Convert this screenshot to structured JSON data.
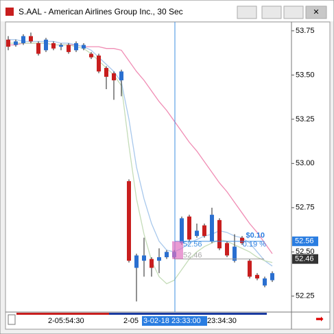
{
  "window_title": "S.AAL - American Airlines Group Inc., 30 Sec",
  "chart_data": {
    "type": "candlestick",
    "open": [
      53.7,
      53.67,
      53.68,
      53.72,
      53.68,
      53.64,
      53.68,
      53.66,
      53.67,
      53.64,
      53.65,
      53.62,
      53.61,
      53.54,
      53.51,
      53.47,
      52.9,
      52.41,
      52.45,
      52.46,
      52.45,
      52.47,
      52.47,
      52.55,
      52.7,
      52.59,
      52.65,
      52.56,
      52.68,
      52.55,
      52.45,
      52.58,
      52.45,
      52.37,
      52.31,
      52.34
    ],
    "high": [
      53.72,
      53.7,
      53.73,
      53.74,
      53.69,
      53.71,
      53.69,
      53.68,
      53.68,
      53.69,
      53.68,
      53.63,
      53.62,
      53.55,
      53.52,
      53.53,
      52.91,
      52.49,
      52.58,
      52.47,
      52.52,
      52.51,
      52.51,
      52.7,
      52.71,
      52.66,
      52.66,
      52.75,
      52.69,
      52.56,
      52.6,
      52.59,
      52.46,
      52.38,
      52.36,
      52.39
    ],
    "low": [
      53.64,
      53.66,
      53.67,
      53.68,
      53.61,
      53.63,
      53.64,
      53.64,
      53.62,
      53.63,
      53.64,
      53.59,
      53.51,
      53.42,
      53.36,
      53.38,
      52.44,
      52.22,
      52.36,
      52.36,
      52.38,
      52.46,
      52.46,
      52.54,
      52.56,
      52.58,
      52.58,
      52.55,
      52.51,
      52.47,
      52.44,
      52.54,
      52.35,
      52.34,
      52.3,
      52.33
    ],
    "close": [
      53.66,
      53.69,
      53.72,
      53.69,
      53.62,
      53.7,
      53.65,
      53.67,
      53.63,
      53.68,
      53.67,
      53.6,
      53.52,
      53.49,
      53.47,
      53.52,
      52.45,
      52.48,
      52.48,
      52.41,
      52.47,
      52.5,
      52.5,
      52.69,
      52.57,
      52.62,
      52.59,
      52.71,
      52.52,
      52.48,
      52.53,
      52.55,
      52.36,
      52.35,
      52.35,
      52.38
    ],
    "up_color": "#2a6fd0",
    "down_color": "#c81e1e",
    "series": [
      {
        "color": "#f08cb4",
        "values": [
          53.67,
          53.67,
          53.68,
          53.68,
          53.68,
          53.68,
          53.67,
          53.67,
          53.67,
          53.67,
          53.66,
          53.66,
          53.66,
          53.65,
          53.65,
          53.64,
          53.58,
          53.52,
          53.47,
          53.41,
          53.35,
          53.3,
          53.24,
          53.18,
          53.12,
          53.07,
          53.01,
          52.95,
          52.89,
          52.84,
          52.78,
          52.72,
          52.66,
          52.61,
          52.55,
          52.49
        ]
      },
      {
        "color": "#a8c8ec",
        "values": [
          53.7,
          53.7,
          53.69,
          53.69,
          53.69,
          53.69,
          53.69,
          53.68,
          53.68,
          53.67,
          53.66,
          53.64,
          53.6,
          53.56,
          53.52,
          53.46,
          53.25,
          52.98,
          52.8,
          52.66,
          52.56,
          52.51,
          52.5,
          52.52,
          52.55,
          52.57,
          52.59,
          52.6,
          52.62,
          52.61,
          52.59,
          52.58,
          52.55,
          52.5,
          52.45,
          52.42
        ]
      },
      {
        "color": "#c4dcb8",
        "values": [
          53.68,
          53.68,
          53.68,
          53.68,
          53.68,
          53.68,
          53.67,
          53.67,
          53.67,
          53.66,
          53.65,
          53.62,
          53.58,
          53.54,
          53.5,
          53.44,
          53.1,
          52.8,
          52.6,
          52.45,
          52.36,
          52.32,
          52.34,
          52.4,
          52.46,
          52.5,
          52.53,
          52.55,
          52.57,
          52.56,
          52.54,
          52.52,
          52.5,
          52.47,
          52.45,
          52.44
        ]
      }
    ],
    "ylim": [
      52.16,
      53.8
    ],
    "yticks": [
      53.75,
      {
        "value": 53.5,
        "label": "53.50"
      },
      53.25,
      {
        "value": 53,
        "label": "53.00"
      },
      52.75,
      {
        "value": 52.5,
        "label": "52.50"
      },
      52.25
    ],
    "xtick_labels": [
      "2-05:54:30",
      "2-05",
      "23:34:30"
    ],
    "cursor_time": "3-02-18 23:33:00",
    "price_tags": [
      {
        "value": 52.56,
        "color": "#2a7de1"
      },
      {
        "value": 52.46,
        "color": "#333333"
      }
    ],
    "measure": {
      "change": "$0.10",
      "percent": "0.19 %",
      "upper": "52.56",
      "lower": "52.46"
    }
  }
}
